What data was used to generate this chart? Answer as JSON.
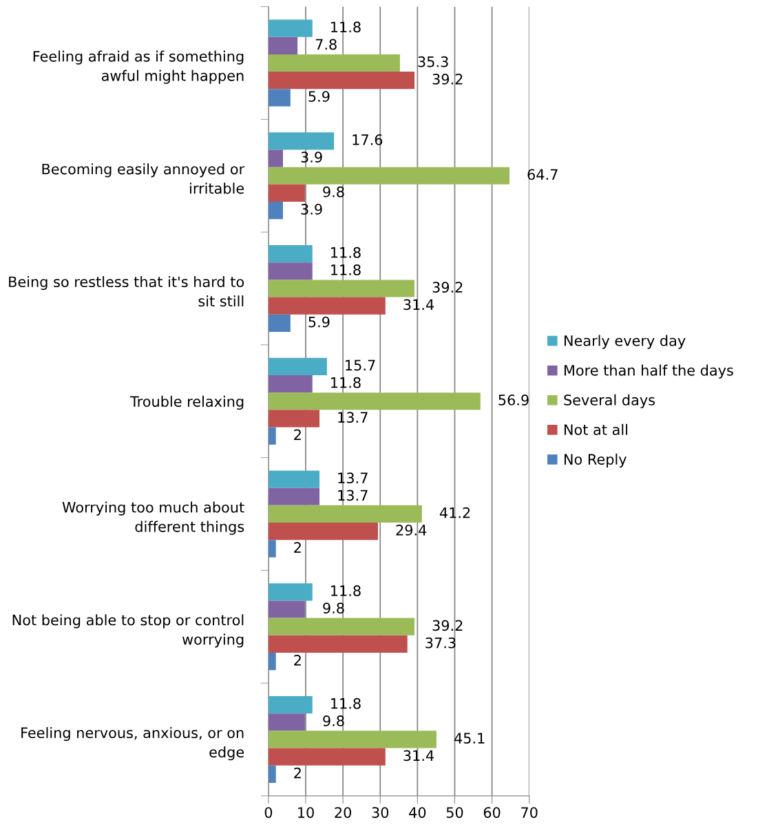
{
  "chart_data": {
    "type": "bar",
    "orientation": "horizontal",
    "categories": [
      "Feeling afraid as if something\nawful might happen",
      "Becoming easily annoyed or\nirritable",
      "Being so restless that it's hard to\nsit still",
      "Trouble relaxing",
      "Worrying too much about\ndifferent things",
      "Not being able to stop or control\nworrying",
      "Feeling nervous, anxious, or on\nedge"
    ],
    "series": [
      {
        "name": "Nearly every day",
        "color": "#4bacc6",
        "values": [
          11.8,
          17.6,
          11.8,
          15.7,
          13.7,
          11.8,
          11.8
        ]
      },
      {
        "name": "More than half the days",
        "color": "#8064a2",
        "values": [
          7.8,
          3.9,
          11.8,
          11.8,
          13.7,
          9.8,
          9.8
        ]
      },
      {
        "name": "Several days",
        "color": "#9bbb59",
        "values": [
          35.3,
          64.7,
          39.2,
          56.9,
          41.2,
          39.2,
          45.1
        ]
      },
      {
        "name": "Not at all",
        "color": "#c0504d",
        "values": [
          39.2,
          9.8,
          31.4,
          13.7,
          29.4,
          37.3,
          31.4
        ]
      },
      {
        "name": "No Reply",
        "color": "#4f81bd",
        "values": [
          5.9,
          3.9,
          5.9,
          2,
          2,
          2,
          2
        ]
      }
    ],
    "xlim": [
      0,
      70
    ],
    "xticks": [
      0,
      10,
      20,
      30,
      40,
      50,
      60,
      70
    ],
    "grid": "x",
    "legend": "right",
    "data_labels": true
  }
}
